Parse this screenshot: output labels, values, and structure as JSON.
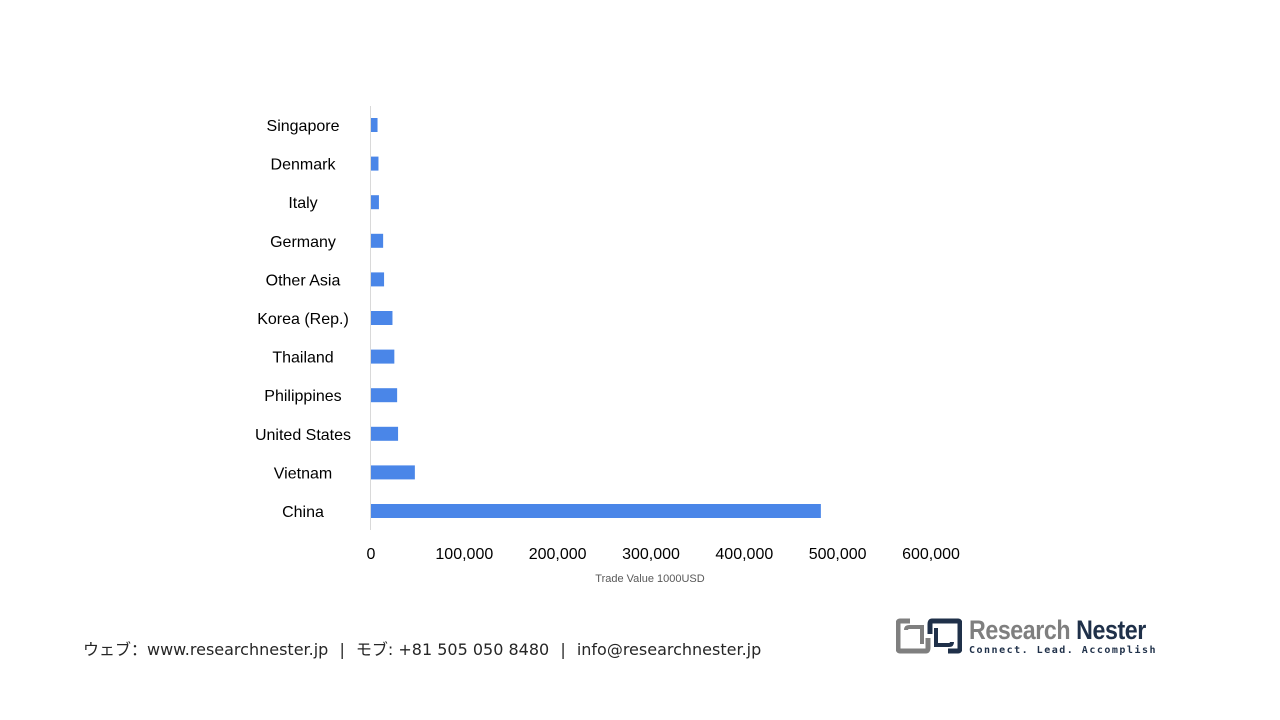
{
  "chart_data": {
    "type": "bar",
    "orientation": "horizontal",
    "title": "",
    "xlabel": "Trade Value 1000USD",
    "ylabel": "",
    "categories": [
      "Singapore",
      "Denmark",
      "Italy",
      "Germany",
      "Other Asia",
      "Korea (Rep.)",
      "Thailand",
      "Philippines",
      "United States",
      "Vietnam",
      "China"
    ],
    "values": [
      7000,
      8000,
      8500,
      13000,
      14000,
      23000,
      25000,
      28000,
      29000,
      47000,
      482000
    ],
    "xlim": [
      0,
      600000
    ],
    "xticks": [
      0,
      100000,
      200000,
      300000,
      400000,
      500000,
      600000
    ],
    "xtick_labels": [
      "0",
      "100,000",
      "200,000",
      "300,000",
      "400,000",
      "500,000",
      "600,000"
    ],
    "grid": false,
    "legend": "none",
    "bar_color": "#4a86e8"
  },
  "footer": {
    "web_label": "ウェブ：www.researchnester.jp",
    "sep1": "|",
    "phone_label": "モブ: +81 505 050 8480",
    "sep2": "|",
    "email_label": "info@researchnester.jp"
  },
  "logo": {
    "name_part1": "Research",
    "name_part2": "Nester",
    "tagline": "Connect. Lead. Accomplish",
    "icon": "research-nester-logo-icon",
    "color_gray": "#7f7f7f",
    "color_navy": "#1f3049"
  }
}
